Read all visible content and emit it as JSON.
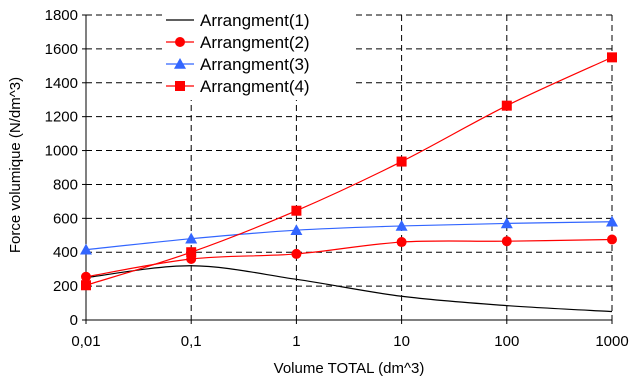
{
  "chart_data": {
    "type": "line",
    "xlabel": "Volume TOTAL (dm^3)",
    "ylabel": "Force volumique (N/dm^3)",
    "x_scale": "log",
    "x": [
      0.01,
      0.1,
      1,
      10,
      100,
      1000
    ],
    "x_tick_labels": [
      "0,01",
      "0,1",
      "1",
      "10",
      "100",
      "1000"
    ],
    "ylim": [
      0,
      1800
    ],
    "y_ticks": [
      0,
      200,
      400,
      600,
      800,
      1000,
      1200,
      1400,
      1600,
      1800
    ],
    "grid": true,
    "legend_position": "top-left",
    "series": [
      {
        "name": "Arrangment(1)",
        "color": "#000000",
        "marker": "none",
        "values": [
          250,
          320,
          240,
          140,
          85,
          50
        ]
      },
      {
        "name": "Arrangment(2)",
        "color": "#ff0000",
        "marker": "circle",
        "values": [
          255,
          360,
          390,
          460,
          465,
          475
        ]
      },
      {
        "name": "Arrangment(3)",
        "color": "#3366ff",
        "marker": "triangle",
        "values": [
          415,
          480,
          530,
          555,
          570,
          580
        ]
      },
      {
        "name": "Arrangment(4)",
        "color": "#ff0000",
        "marker": "square",
        "values": [
          205,
          400,
          645,
          935,
          1265,
          1550
        ]
      }
    ]
  }
}
